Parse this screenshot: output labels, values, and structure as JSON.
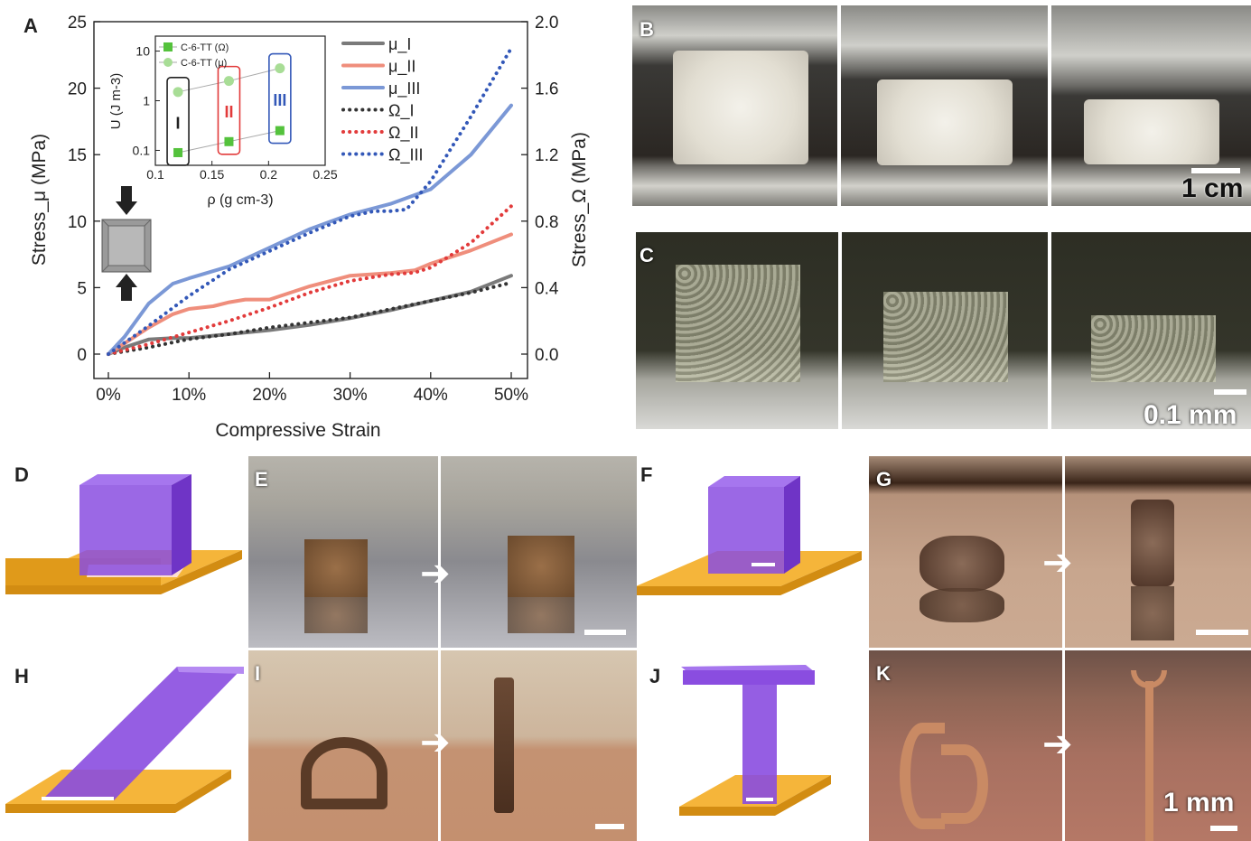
{
  "panels": {
    "A": "A",
    "B": "B",
    "C": "C",
    "D": "D",
    "E": "E",
    "F": "F",
    "G": "G",
    "H": "H",
    "I": "I",
    "J": "J",
    "K": "K"
  },
  "scale_bars": {
    "B": "1 cm",
    "C": "0.1 mm",
    "K": "1 mm"
  },
  "colors": {
    "mu_I": "#7a7a7a",
    "mu_II": "#ef8e7c",
    "mu_III": "#7b98d6",
    "omega_I": "#333333",
    "omega_II": "#e23b3b",
    "omega_III": "#3358b8",
    "inset_square": "#54c23c",
    "inset_circle": "#a8dd96",
    "lattice_purple": "#8a4de0",
    "substrate_gold": "#f2a626"
  },
  "chart_data": [
    {
      "type": "line",
      "xlabel": "Compressive Strain",
      "ylabel": "Stress_μ (MPa)",
      "y2label": "Stress_Ω (MPa)",
      "xlim": [
        0,
        50
      ],
      "ylim": [
        0,
        25
      ],
      "y2lim": [
        0,
        2.0
      ],
      "xticks": [
        "0%",
        "10%",
        "20%",
        "30%",
        "40%",
        "50%"
      ],
      "yticks": [
        "0",
        "5",
        "10",
        "15",
        "20",
        "25"
      ],
      "y2ticks": [
        "0.0",
        "0.4",
        "0.8",
        "1.2",
        "1.6",
        "2.0"
      ],
      "legend_position": "top-right",
      "series": [
        {
          "name": "μ_I",
          "axis": "left",
          "style": "solid",
          "x": [
            0,
            2,
            5,
            8,
            10,
            15,
            20,
            25,
            30,
            35,
            40,
            45,
            50
          ],
          "y": [
            0,
            0.5,
            1.1,
            1.2,
            1.2,
            1.5,
            1.8,
            2.2,
            2.7,
            3.3,
            4.0,
            4.7,
            5.9
          ]
        },
        {
          "name": "μ_II",
          "axis": "left",
          "style": "solid",
          "x": [
            0,
            2,
            5,
            8,
            10,
            13,
            15,
            17,
            20,
            25,
            30,
            35,
            38,
            40,
            45,
            50
          ],
          "y": [
            0,
            0.8,
            2.0,
            3.0,
            3.4,
            3.6,
            3.9,
            4.1,
            4.1,
            5.1,
            5.9,
            6.1,
            6.3,
            6.8,
            7.8,
            9.0
          ]
        },
        {
          "name": "μ_III",
          "axis": "left",
          "style": "solid",
          "x": [
            0,
            2,
            5,
            8,
            10,
            15,
            20,
            25,
            30,
            35,
            40,
            45,
            50
          ],
          "y": [
            0,
            1.3,
            3.8,
            5.3,
            5.7,
            6.6,
            8.0,
            9.4,
            10.5,
            11.3,
            12.4,
            15.0,
            18.7
          ]
        },
        {
          "name": "Ω_I",
          "axis": "right",
          "style": "dotted",
          "x": [
            0,
            5,
            10,
            15,
            20,
            25,
            30,
            35,
            40,
            45,
            50
          ],
          "y": [
            0,
            0.04,
            0.09,
            0.12,
            0.16,
            0.19,
            0.22,
            0.27,
            0.32,
            0.37,
            0.43
          ]
        },
        {
          "name": "Ω_II",
          "axis": "right",
          "style": "dotted",
          "x": [
            0,
            5,
            10,
            15,
            20,
            25,
            30,
            35,
            38,
            40,
            45,
            50
          ],
          "y": [
            0,
            0.06,
            0.13,
            0.2,
            0.28,
            0.37,
            0.44,
            0.48,
            0.49,
            0.52,
            0.67,
            0.89
          ]
        },
        {
          "name": "Ω_III",
          "axis": "right",
          "style": "dotted",
          "x": [
            0,
            5,
            10,
            15,
            20,
            25,
            30,
            33,
            35,
            37,
            40,
            45,
            50
          ],
          "y": [
            0,
            0.17,
            0.35,
            0.51,
            0.62,
            0.73,
            0.83,
            0.86,
            0.86,
            0.87,
            1.04,
            1.43,
            1.84
          ]
        }
      ]
    },
    {
      "type": "scatter",
      "xlabel": "ρ (g cm-3)",
      "ylabel": "U (J m-3)",
      "xlim": [
        0.1,
        0.25
      ],
      "ylim_log": [
        0.05,
        20
      ],
      "y_scale": "log",
      "xticks": [
        "0.1",
        "0.15",
        "0.2",
        "0.25"
      ],
      "yticks": [
        "0.1",
        "1",
        "10"
      ],
      "legend_position": "top-left",
      "groups": [
        "I",
        "II",
        "III"
      ],
      "series": [
        {
          "name": "C-6-TT (Ω)",
          "marker": "square",
          "x": [
            0.12,
            0.165,
            0.21
          ],
          "y": [
            0.09,
            0.15,
            0.25
          ]
        },
        {
          "name": "C-6-TT (μ)",
          "marker": "circle",
          "x": [
            0.12,
            0.165,
            0.21
          ],
          "y": [
            1.5,
            2.5,
            4.5
          ]
        }
      ]
    }
  ]
}
